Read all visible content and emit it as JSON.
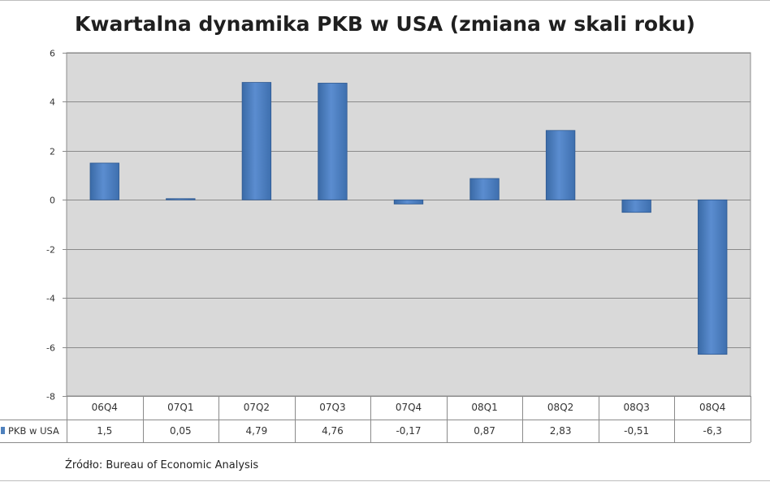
{
  "chart_data": {
    "type": "bar",
    "title": "Kwartalna dynamika PKB w USA (zmiana w skali roku)",
    "categories": [
      "06Q4",
      "07Q1",
      "07Q2",
      "07Q3",
      "07Q4",
      "08Q1",
      "08Q2",
      "08Q3",
      "08Q4"
    ],
    "series": [
      {
        "name": "PKB w USA",
        "values": [
          1.5,
          0.05,
          4.79,
          4.76,
          -0.17,
          0.87,
          2.83,
          -0.51,
          -6.3
        ],
        "labels": [
          "1,5",
          "0,05",
          "4,79",
          "4,76",
          "-0,17",
          "0,87",
          "2,83",
          "-0,51",
          "-6,3"
        ],
        "color": "#4f81bd"
      }
    ],
    "yticks": [
      6,
      4,
      2,
      0,
      -2,
      -4,
      -6,
      -8
    ],
    "ylim": [
      -8,
      6
    ],
    "grid": true,
    "legend": "data-table-left",
    "plot_background": "#d9d9d9"
  },
  "source_note": "Źródło:  Bureau of Economic Analysis"
}
